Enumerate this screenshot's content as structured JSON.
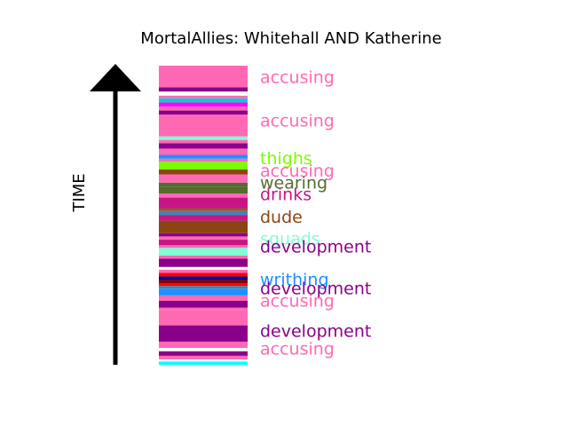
{
  "chart_data": {
    "type": "bar",
    "orientation": "vertical-timeline-strip",
    "title": "MortalAllies: Whitehall AND Katherine",
    "ylabel": "TIME",
    "time_direction": "up",
    "ylim": [
      0,
      100
    ],
    "segments": [
      {
        "start": 0.0,
        "end": 1.2,
        "color": "#00FFFF"
      },
      {
        "start": 1.2,
        "end": 2.0,
        "color": "#FFFFFF"
      },
      {
        "start": 2.0,
        "end": 3.3,
        "color": "#FF69B4"
      },
      {
        "start": 3.3,
        "end": 5.0,
        "color": "#8B008B"
      },
      {
        "start": 5.0,
        "end": 6.2,
        "color": "#FFFFFF"
      },
      {
        "start": 6.2,
        "end": 8.5,
        "color": "#FF69B4"
      },
      {
        "start": 8.5,
        "end": 14.5,
        "color": "#8B008B"
      },
      {
        "start": 14.5,
        "end": 20.0,
        "color": "#FF69B4"
      },
      {
        "start": 20.0,
        "end": 21.0,
        "color": "#FF69B4"
      },
      {
        "start": 21.0,
        "end": 23.5,
        "color": "#8B008B"
      },
      {
        "start": 23.5,
        "end": 25.5,
        "color": "#FF69B4"
      },
      {
        "start": 25.5,
        "end": 28.0,
        "color": "#1E90FF"
      },
      {
        "start": 28.0,
        "end": 29.0,
        "color": "#4682B4"
      },
      {
        "start": 29.0,
        "end": 30.0,
        "color": "#FF0000"
      },
      {
        "start": 30.0,
        "end": 31.2,
        "color": "#8B0000"
      },
      {
        "start": 31.2,
        "end": 32.5,
        "color": "#00008B"
      },
      {
        "start": 32.5,
        "end": 33.8,
        "color": "#FF0000"
      },
      {
        "start": 33.8,
        "end": 35.0,
        "color": "#FF69B4"
      },
      {
        "start": 35.0,
        "end": 36.0,
        "color": "#FFFFFF"
      },
      {
        "start": 36.0,
        "end": 39.0,
        "color": "#8B008B"
      },
      {
        "start": 39.0,
        "end": 40.2,
        "color": "#FF69B4"
      },
      {
        "start": 40.2,
        "end": 43.0,
        "color": "#7FFFD4"
      },
      {
        "start": 43.0,
        "end": 44.0,
        "color": "#FF69B4"
      },
      {
        "start": 44.0,
        "end": 46.0,
        "color": "#C71585"
      },
      {
        "start": 46.0,
        "end": 47.2,
        "color": "#FF69B4"
      },
      {
        "start": 47.2,
        "end": 48.4,
        "color": "#8B008B"
      },
      {
        "start": 48.4,
        "end": 53.0,
        "color": "#8B4513"
      },
      {
        "start": 53.0,
        "end": 55.0,
        "color": "#C71585"
      },
      {
        "start": 55.0,
        "end": 56.6,
        "color": "#4682B4"
      },
      {
        "start": 56.6,
        "end": 57.6,
        "color": "#A0522D"
      },
      {
        "start": 57.6,
        "end": 61.5,
        "color": "#C71585"
      },
      {
        "start": 61.5,
        "end": 63.0,
        "color": "#FF69B4"
      },
      {
        "start": 63.0,
        "end": 65.5,
        "color": "#556B2F"
      },
      {
        "start": 65.5,
        "end": 67.0,
        "color": "#556B2F"
      },
      {
        "start": 67.0,
        "end": 70.0,
        "color": "#FF69B4"
      },
      {
        "start": 70.0,
        "end": 71.8,
        "color": "#8B4513"
      },
      {
        "start": 71.8,
        "end": 74.7,
        "color": "#7CFC00"
      },
      {
        "start": 74.7,
        "end": 75.8,
        "color": "#FF69B4"
      },
      {
        "start": 75.8,
        "end": 77.2,
        "color": "#1E90FF"
      },
      {
        "start": 77.2,
        "end": 79.5,
        "color": "#FF69B4"
      },
      {
        "start": 79.5,
        "end": 81.5,
        "color": "#8B008B"
      },
      {
        "start": 81.5,
        "end": 82.7,
        "color": "#FF69B4"
      },
      {
        "start": 82.7,
        "end": 84.0,
        "color": "#7FFFD4"
      },
      {
        "start": 84.0,
        "end": 92.0,
        "color": "#FF69B4"
      },
      {
        "start": 92.0,
        "end": 93.5,
        "color": "#8B008B"
      },
      {
        "start": 93.5,
        "end": 95.0,
        "color": "#FF69B4"
      },
      {
        "start": 95.0,
        "end": 96.5,
        "color": "#FF00FF"
      },
      {
        "start": 96.5,
        "end": 98.0,
        "color": "#00CED1"
      },
      {
        "start": 98.0,
        "end": 99.0,
        "color": "#FF69B4"
      },
      {
        "start": 99.0,
        "end": 100.5,
        "color": "#FFFFFF"
      },
      {
        "start": 100.5,
        "end": 102.0,
        "color": "#8B008B"
      },
      {
        "start": 102.0,
        "end": 110.0,
        "color": "#FF69B4"
      }
    ],
    "annotations": [
      {
        "text": "accusing",
        "y": 106.0,
        "color": "#FF69B4"
      },
      {
        "text": "accusing",
        "y": 90.0,
        "color": "#FF69B4"
      },
      {
        "text": "thighs",
        "y": 76.0,
        "color": "#7CFC00"
      },
      {
        "text": "accusing",
        "y": 71.5,
        "color": "#FF69B4"
      },
      {
        "text": "wearing",
        "y": 67.0,
        "color": "#556B2F"
      },
      {
        "text": "drinks",
        "y": 62.8,
        "color": "#C71585"
      },
      {
        "text": "dude",
        "y": 54.5,
        "color": "#8B4513"
      },
      {
        "text": "squads",
        "y": 46.5,
        "color": "#7FFFD4"
      },
      {
        "text": "development",
        "y": 43.5,
        "color": "#8B008B"
      },
      {
        "text": "writhing",
        "y": 31.5,
        "color": "#1E90FF"
      },
      {
        "text": "development",
        "y": 28.2,
        "color": "#8B008B"
      },
      {
        "text": "accusing",
        "y": 23.7,
        "color": "#FF69B4"
      },
      {
        "text": "development",
        "y": 12.5,
        "color": "#8B008B"
      },
      {
        "text": "accusing",
        "y": 6.0,
        "color": "#FF69B4"
      }
    ]
  }
}
